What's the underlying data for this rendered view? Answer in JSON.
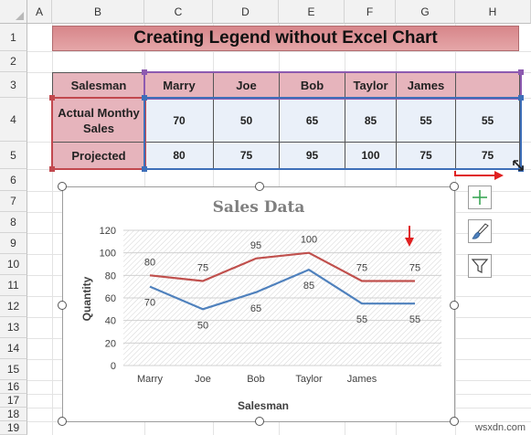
{
  "grid": {
    "columns": [
      "A",
      "B",
      "C",
      "D",
      "E",
      "F",
      "G",
      "H"
    ],
    "rows": [
      "1",
      "2",
      "3",
      "4",
      "5",
      "6",
      "7",
      "8",
      "9",
      "10",
      "11",
      "12",
      "13",
      "14",
      "15",
      "16",
      "17",
      "18",
      "19"
    ]
  },
  "sheet": {
    "title": "Creating Legend without Excel Chart",
    "header_label": "Salesman",
    "names": [
      "Marry",
      "Joe",
      "Bob",
      "Taylor",
      "James",
      ""
    ],
    "actual_label": "Actual Monthy Sales",
    "actual_values": [
      "70",
      "50",
      "65",
      "85",
      "55",
      "55"
    ],
    "projected_label": "Projected",
    "projected_values": [
      "80",
      "75",
      "95",
      "100",
      "75",
      "75"
    ]
  },
  "chart_data": {
    "type": "line",
    "title": "Sales Data",
    "xlabel": "Salesman",
    "ylabel": "Quantity",
    "categories": [
      "Marry",
      "Joe",
      "Bob",
      "Taylor",
      "James",
      ""
    ],
    "series": [
      {
        "values": [
          80,
          75,
          95,
          100,
          75,
          75
        ],
        "color": "#c0504d"
      },
      {
        "values": [
          70,
          50,
          65,
          85,
          55,
          55
        ],
        "color": "#4f81bd"
      }
    ],
    "ylim": [
      0,
      120
    ],
    "yticks": [
      0,
      20,
      40,
      60,
      80,
      100,
      120
    ],
    "grid": true,
    "legend": "none"
  },
  "tools": {
    "add_element": "plus-icon",
    "styles": "brush-icon",
    "filters": "funnel-icon"
  },
  "colors": {
    "arrow": "#e02020",
    "header_fill": "#e6b4bc",
    "title_fill": "#d7868a",
    "value_fill": "#eaf0f9"
  },
  "watermark": "wsxdn.com"
}
